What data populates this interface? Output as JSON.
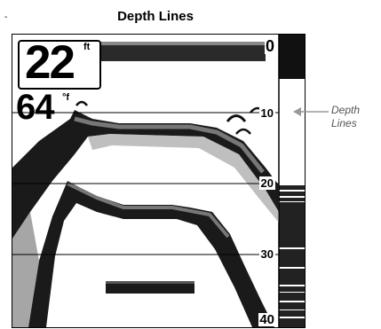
{
  "page": {
    "corner_mark": "-",
    "heading": "Depth Lines"
  },
  "screen": {
    "depth_value": "22",
    "depth_unit": "ft",
    "temperature_value": "64",
    "temperature_unit": "°f",
    "depth_scale": [
      "0",
      "10",
      "20",
      "30",
      "40"
    ]
  },
  "callout": {
    "text": "Depth\nLines"
  },
  "colors": {
    "background": "#ffffff",
    "sonar_dark": "#1a1a1a",
    "sonar_mid": "#666666",
    "callout_text": "#555555",
    "arrow": "#999999"
  }
}
